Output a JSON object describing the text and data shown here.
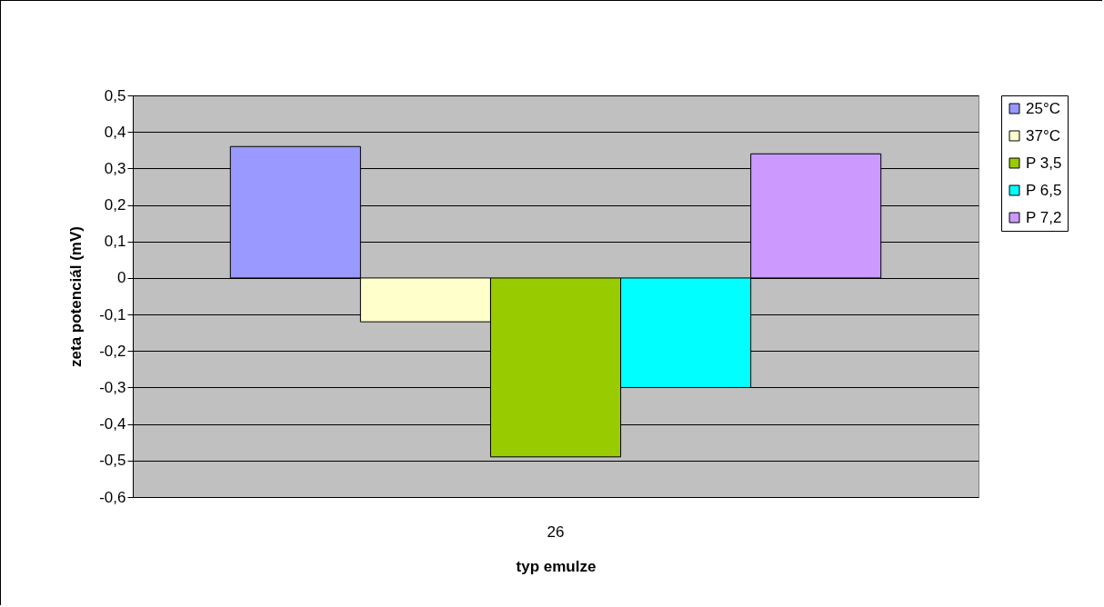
{
  "chart_data": {
    "type": "bar",
    "categories": [
      "26"
    ],
    "xlabel": "typ emulze",
    "ylabel": "zeta potenciál (mV)",
    "series": [
      {
        "name": "25°C",
        "color": "#9999ff",
        "values": [
          0.36
        ]
      },
      {
        "name": "37°C",
        "color": "#ffffcc",
        "values": [
          -0.12
        ]
      },
      {
        "name": "P 3,5",
        "color": "#99cc00",
        "values": [
          -0.49
        ]
      },
      {
        "name": "P 6,5",
        "color": "#00ffff",
        "values": [
          -0.3
        ]
      },
      {
        "name": "P 7,2",
        "color": "#cc99ff",
        "values": [
          0.34
        ]
      }
    ],
    "ylim": [
      -0.6,
      0.5
    ],
    "yticks": [
      {
        "value": -0.6,
        "label": "-0,6"
      },
      {
        "value": -0.5,
        "label": "-0,5"
      },
      {
        "value": -0.4,
        "label": "-0,4"
      },
      {
        "value": -0.3,
        "label": "-0,3"
      },
      {
        "value": -0.2,
        "label": "-0,2"
      },
      {
        "value": -0.1,
        "label": "-0,1"
      },
      {
        "value": 0,
        "label": "0"
      },
      {
        "value": 0.1,
        "label": "0,1"
      },
      {
        "value": 0.2,
        "label": "0,2"
      },
      {
        "value": 0.3,
        "label": "0,3"
      },
      {
        "value": 0.4,
        "label": "0,4"
      },
      {
        "value": 0.5,
        "label": "0,5"
      }
    ],
    "grid": "y",
    "legend": "right"
  }
}
